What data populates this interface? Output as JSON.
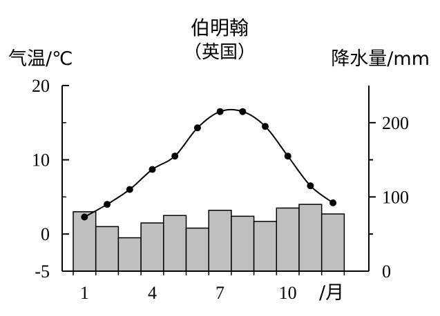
{
  "chart_data": {
    "type": "bar+line",
    "title": "伯明翰",
    "subtitle": "（英国）",
    "left_axis_label": "气温/℃",
    "right_axis_label": "降水量/mm",
    "x_unit_label": "/月",
    "months": [
      1,
      2,
      3,
      4,
      5,
      6,
      7,
      8,
      9,
      10,
      11,
      12
    ],
    "x_tick_labels": [
      "1",
      "4",
      "7",
      "10"
    ],
    "x_tick_months": [
      1,
      4,
      7,
      10
    ],
    "left_ticks": [
      "20",
      "10",
      "0",
      "-5"
    ],
    "left_tick_values": [
      20,
      10,
      0,
      -5
    ],
    "right_ticks": [
      "200",
      "100",
      "0"
    ],
    "right_tick_values": [
      200,
      100,
      0
    ],
    "temperature": [
      2.3,
      4.0,
      6.0,
      8.7,
      10.5,
      14.3,
      16.5,
      16.5,
      14.5,
      10.5,
      6.5,
      4.2
    ],
    "precipitation": [
      80,
      60,
      45,
      65,
      75,
      58,
      82,
      74,
      67,
      85,
      90,
      77
    ],
    "temp_range": [
      -5,
      20
    ],
    "precip_range": [
      0,
      250
    ],
    "colors": {
      "bars": "#bfbfbf",
      "bar_stroke": "#000000",
      "line": "#000000",
      "dots": "#000000"
    }
  }
}
